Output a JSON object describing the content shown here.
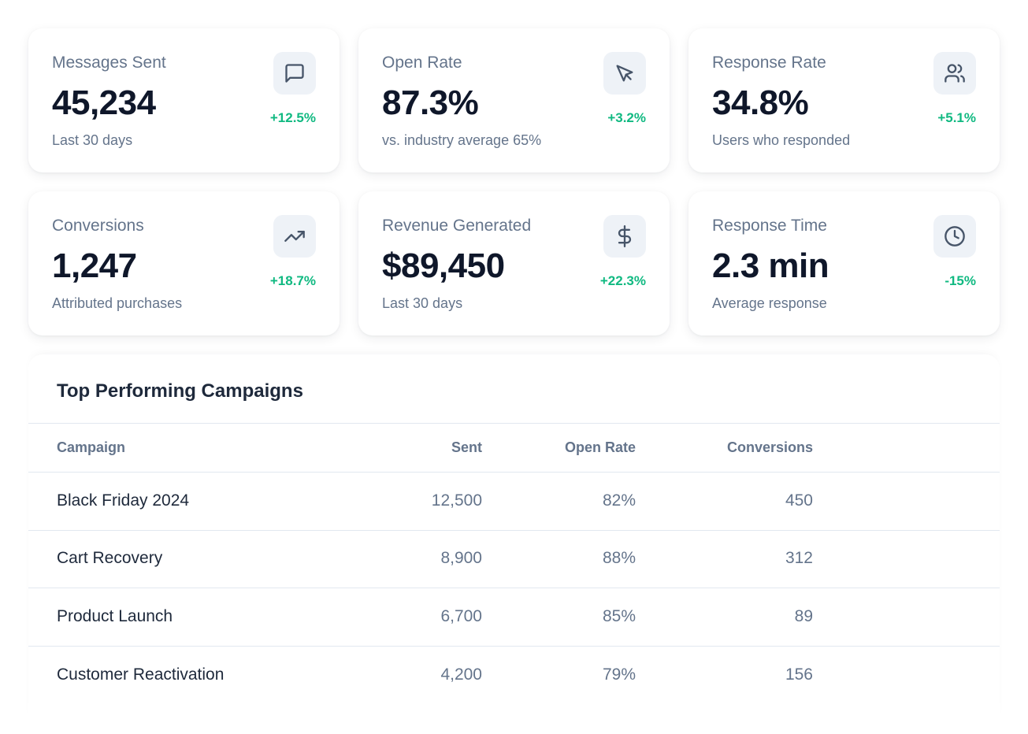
{
  "colors": {
    "positive": "#10b981",
    "text_primary": "#0f172a",
    "text_muted": "#64748b",
    "icon_bg": "#eef2f7"
  },
  "metrics": [
    {
      "label": "Messages Sent",
      "value": "45,234",
      "subtext": "Last 30 days",
      "change": "+12.5%",
      "icon": "message-square-icon"
    },
    {
      "label": "Open Rate",
      "value": "87.3%",
      "subtext": "vs. industry average 65%",
      "change": "+3.2%",
      "icon": "mouse-pointer-icon"
    },
    {
      "label": "Response Rate",
      "value": "34.8%",
      "subtext": "Users who responded",
      "change": "+5.1%",
      "icon": "users-icon"
    },
    {
      "label": "Conversions",
      "value": "1,247",
      "subtext": "Attributed purchases",
      "change": "+18.7%",
      "icon": "trending-up-icon"
    },
    {
      "label": "Revenue Generated",
      "value": "$89,450",
      "subtext": "Last 30 days",
      "change": "+22.3%",
      "icon": "dollar-sign-icon"
    },
    {
      "label": "Response Time",
      "value": "2.3 min",
      "subtext": "Average response",
      "change": "-15%",
      "icon": "clock-icon"
    }
  ],
  "campaigns": {
    "title": "Top Performing Campaigns",
    "columns": {
      "campaign": "Campaign",
      "sent": "Sent",
      "open_rate": "Open Rate",
      "conversions": "Conversions"
    },
    "rows": [
      {
        "campaign": "Black Friday 2024",
        "sent": "12,500",
        "open_rate": "82%",
        "conversions": "450"
      },
      {
        "campaign": "Cart Recovery",
        "sent": "8,900",
        "open_rate": "88%",
        "conversions": "312"
      },
      {
        "campaign": "Product Launch",
        "sent": "6,700",
        "open_rate": "85%",
        "conversions": "89"
      },
      {
        "campaign": "Customer Reactivation",
        "sent": "4,200",
        "open_rate": "79%",
        "conversions": "156"
      }
    ]
  }
}
